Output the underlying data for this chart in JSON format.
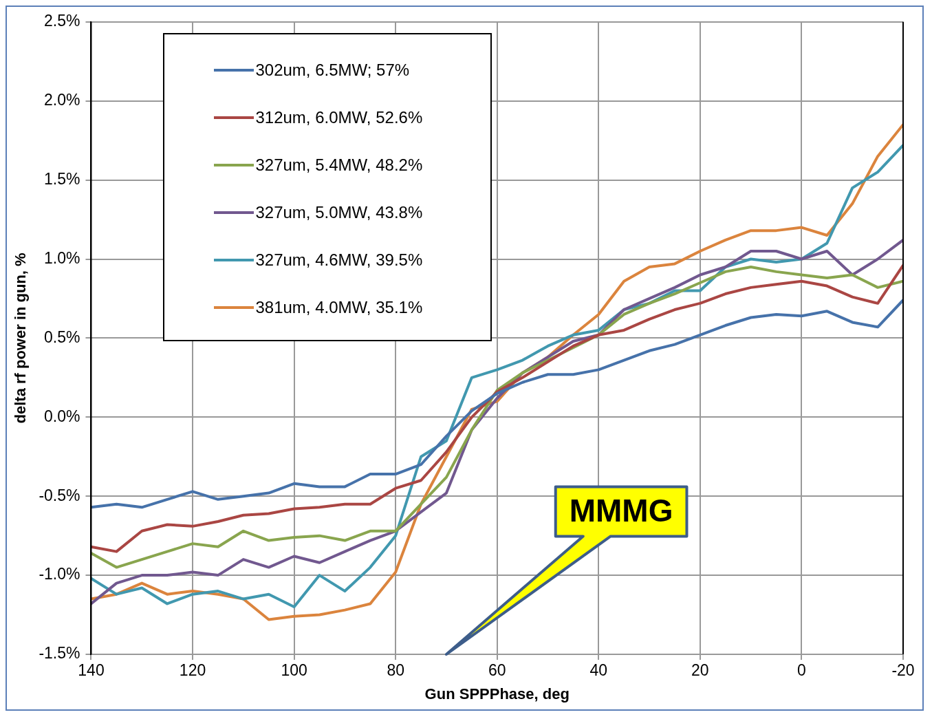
{
  "chart_data": {
    "type": "line",
    "xlabel": "Gun SPPPhase, deg",
    "ylabel": "delta rf power in gun, %",
    "x": [
      140,
      135,
      130,
      125,
      120,
      115,
      110,
      105,
      100,
      95,
      90,
      85,
      80,
      75,
      70,
      65,
      60,
      55,
      50,
      45,
      40,
      35,
      30,
      25,
      20,
      15,
      10,
      5,
      0,
      -5,
      -10,
      -15,
      -20
    ],
    "series": [
      {
        "name": "302um, 6.5MW; 57%",
        "color": "#4672aa",
        "values": [
          -0.57,
          -0.55,
          -0.57,
          -0.52,
          -0.47,
          -0.52,
          -0.5,
          -0.48,
          -0.42,
          -0.44,
          -0.44,
          -0.36,
          -0.36,
          -0.3,
          -0.12,
          0.04,
          0.15,
          0.22,
          0.27,
          0.27,
          0.3,
          0.36,
          0.42,
          0.46,
          0.52,
          0.58,
          0.63,
          0.65,
          0.64,
          0.67,
          0.6,
          0.57,
          0.74
        ]
      },
      {
        "name": "312um, 6.0MW, 52.6%",
        "color": "#aa4643",
        "values": [
          -0.82,
          -0.85,
          -0.72,
          -0.68,
          -0.69,
          -0.66,
          -0.62,
          -0.61,
          -0.58,
          -0.57,
          -0.55,
          -0.55,
          -0.45,
          -0.4,
          -0.22,
          0.0,
          0.16,
          0.25,
          0.35,
          0.45,
          0.52,
          0.55,
          0.62,
          0.68,
          0.72,
          0.78,
          0.82,
          0.84,
          0.86,
          0.83,
          0.76,
          0.72,
          0.96
        ]
      },
      {
        "name": "327um, 5.4MW, 48.2%",
        "color": "#89a54e",
        "values": [
          -0.86,
          -0.95,
          -0.9,
          -0.85,
          -0.8,
          -0.82,
          -0.72,
          -0.78,
          -0.76,
          -0.75,
          -0.78,
          -0.72,
          -0.72,
          -0.55,
          -0.38,
          -0.08,
          0.17,
          0.28,
          0.36,
          0.44,
          0.52,
          0.65,
          0.72,
          0.78,
          0.85,
          0.92,
          0.95,
          0.92,
          0.9,
          0.88,
          0.9,
          0.82,
          0.86
        ]
      },
      {
        "name": "327um, 5.0MW, 43.8%",
        "color": "#71588f",
        "values": [
          -1.18,
          -1.05,
          -1.0,
          -1.0,
          -0.98,
          -1.0,
          -0.9,
          -0.95,
          -0.88,
          -0.92,
          -0.85,
          -0.78,
          -0.72,
          -0.6,
          -0.48,
          -0.08,
          0.12,
          0.28,
          0.38,
          0.48,
          0.52,
          0.68,
          0.75,
          0.82,
          0.9,
          0.95,
          1.05,
          1.05,
          1.0,
          1.05,
          0.9,
          1.0,
          1.12
        ]
      },
      {
        "name": "327um, 4.6MW, 39.5%",
        "color": "#4198af",
        "values": [
          -1.02,
          -1.12,
          -1.08,
          -1.18,
          -1.12,
          -1.1,
          -1.15,
          -1.12,
          -1.2,
          -1.0,
          -1.1,
          -0.95,
          -0.75,
          -0.25,
          -0.15,
          0.25,
          0.3,
          0.36,
          0.45,
          0.52,
          0.55,
          0.68,
          0.72,
          0.8,
          0.8,
          0.95,
          1.0,
          0.98,
          1.0,
          1.1,
          1.45,
          1.55,
          1.72
        ]
      },
      {
        "name": "381um, 4.0MW, 35.1%",
        "color": "#db843d",
        "values": [
          -1.15,
          -1.12,
          -1.05,
          -1.12,
          -1.1,
          -1.12,
          -1.15,
          -1.28,
          -1.26,
          -1.25,
          -1.22,
          -1.18,
          -0.98,
          -0.55,
          -0.25,
          0.05,
          0.1,
          0.28,
          0.38,
          0.52,
          0.65,
          0.86,
          0.95,
          0.97,
          1.05,
          1.12,
          1.18,
          1.18,
          1.2,
          1.15,
          1.35,
          1.65,
          1.85
        ]
      }
    ],
    "xlim": [
      140,
      -20
    ],
    "xticks": [
      140,
      120,
      100,
      80,
      60,
      40,
      20,
      0,
      -20
    ],
    "ylim": [
      -1.5,
      2.5
    ],
    "yticks": [
      {
        "value": -1.5,
        "label": "-1.5%"
      },
      {
        "value": -1,
        "label": "-1.0%"
      },
      {
        "value": -0.5,
        "label": "-0.5%"
      },
      {
        "value": 0,
        "label": "0.0%"
      },
      {
        "value": 0.5,
        "label": "0.5%"
      },
      {
        "value": 1,
        "label": "1.0%"
      },
      {
        "value": 1.5,
        "label": "1.5%"
      },
      {
        "value": 2,
        "label": "2.0%"
      },
      {
        "value": 2.5,
        "label": "2.5%"
      }
    ],
    "annotations": [
      "MMMG"
    ],
    "grid": true,
    "legend": "top left",
    "marker": "none",
    "line_style": "solid"
  }
}
